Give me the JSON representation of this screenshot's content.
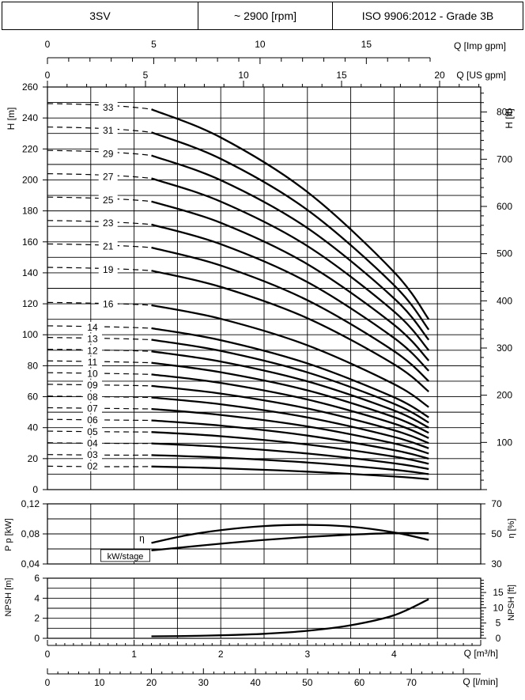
{
  "header": {
    "model": "3SV",
    "speed": "~ 2900 [rpm]",
    "standard": "ISO 9906:2012 - Grade 3B"
  },
  "axes": {
    "q_imp_gpm": {
      "label": "Q [Imp gpm]",
      "ticks": [
        "0",
        "5",
        "10",
        "15"
      ],
      "values": [
        0,
        5,
        10,
        15
      ]
    },
    "q_us_gpm": {
      "label": "Q [US gpm]",
      "ticks": [
        "0",
        "5",
        "10",
        "15",
        "20"
      ],
      "values": [
        0,
        5,
        10,
        15,
        20
      ]
    },
    "h_m": {
      "label": "H [m]",
      "ticks": [
        "0",
        "20",
        "40",
        "60",
        "80",
        "100",
        "120",
        "140",
        "160",
        "180",
        "200",
        "220",
        "240",
        "260"
      ]
    },
    "h_ft": {
      "label": "H [ft]",
      "ticks": [
        "100",
        "200",
        "300",
        "400",
        "500",
        "600",
        "700",
        "800"
      ],
      "values": [
        100,
        200,
        300,
        400,
        500,
        600,
        700,
        800
      ]
    },
    "pp_kw": {
      "label": "P p [kW]",
      "ticks": [
        "0,04",
        "0,08",
        "0,12"
      ]
    },
    "eta": {
      "label": "η [%]",
      "ticks": [
        "30",
        "50",
        "70"
      ]
    },
    "npsh_m": {
      "label": "NPSH [m]",
      "ticks": [
        "0",
        "2",
        "4",
        "6"
      ]
    },
    "npsh_ft": {
      "label": "NPSH [ft]",
      "ticks": [
        "0",
        "5",
        "10",
        "15"
      ],
      "values": [
        0,
        5,
        10,
        15
      ]
    },
    "q_m3h": {
      "label": "Q [m³/h]",
      "ticks": [
        "0",
        "1",
        "2",
        "3",
        "4"
      ]
    },
    "q_lmin": {
      "label": "Q [l/min]",
      "ticks": [
        "0",
        "10",
        "20",
        "30",
        "40",
        "50",
        "60",
        "70"
      ]
    }
  },
  "chart_data": [
    {
      "type": "line",
      "title": "",
      "xlabel": "Q [m³/h]",
      "ylabel": "H [m]",
      "xlim": [
        0,
        5
      ],
      "ylim": [
        0,
        260
      ],
      "stage_labels": [
        "33",
        "31",
        "29",
        "27",
        "25",
        "23",
        "21",
        "19",
        "16",
        "14",
        "13",
        "12",
        "11",
        "10",
        "09",
        "08",
        "07",
        "06",
        "05",
        "04",
        "03",
        "02"
      ],
      "series": [
        {
          "name": "33",
          "stages": 33,
          "x": [
            1.2,
            2,
            3,
            4,
            4.4
          ],
          "values": [
            245.6,
            227.4,
            192.2,
            140.5,
            110
          ]
        },
        {
          "name": "31",
          "stages": 31,
          "x": [
            1.2,
            2,
            3,
            4,
            4.4
          ],
          "values": [
            230.7,
            213.6,
            180.6,
            132,
            103.3
          ]
        },
        {
          "name": "29",
          "stages": 29,
          "x": [
            1.2,
            2,
            3,
            4,
            4.4
          ],
          "values": [
            215.8,
            199.8,
            168.9,
            123.5,
            96.7
          ]
        },
        {
          "name": "27",
          "stages": 27,
          "x": [
            1.2,
            2,
            3,
            4,
            4.4
          ],
          "values": [
            201,
            186,
            157.3,
            115,
            90
          ]
        },
        {
          "name": "25",
          "stages": 25,
          "x": [
            1.2,
            2,
            3,
            4,
            4.4
          ],
          "values": [
            186.1,
            172.3,
            145.6,
            106.4,
            83.3
          ]
        },
        {
          "name": "23",
          "stages": 23,
          "x": [
            1.2,
            2,
            3,
            4,
            4.4
          ],
          "values": [
            171.2,
            158.5,
            134,
            97.9,
            76.7
          ]
        },
        {
          "name": "21",
          "stages": 21,
          "x": [
            1.2,
            2,
            3,
            4,
            4.4
          ],
          "values": [
            156.3,
            144.7,
            122.3,
            89.4,
            70
          ]
        },
        {
          "name": "19",
          "stages": 19,
          "x": [
            1.2,
            2,
            3,
            4,
            4.4
          ],
          "values": [
            141.4,
            130.9,
            110.7,
            80.9,
            63.3
          ]
        },
        {
          "name": "16",
          "stages": 16,
          "x": [
            1.2,
            2,
            3,
            4,
            4.4
          ],
          "values": [
            119.1,
            110.3,
            93.2,
            68.1,
            53.3
          ]
        },
        {
          "name": "14",
          "stages": 14,
          "x": [
            1.2,
            2,
            3,
            4,
            4.4
          ],
          "values": [
            104.2,
            96.5,
            81.5,
            59.6,
            46.7
          ]
        },
        {
          "name": "13",
          "stages": 13,
          "x": [
            1.2,
            2,
            3,
            4,
            4.4
          ],
          "values": [
            96.8,
            89.6,
            75.7,
            55.4,
            43.3
          ]
        },
        {
          "name": "12",
          "stages": 12,
          "x": [
            1.2,
            2,
            3,
            4,
            4.4
          ],
          "values": [
            89.3,
            82.7,
            69.9,
            51.1,
            40
          ]
        },
        {
          "name": "11",
          "stages": 11,
          "x": [
            1.2,
            2,
            3,
            4,
            4.4
          ],
          "values": [
            81.9,
            75.8,
            64.1,
            46.8,
            36.7
          ]
        },
        {
          "name": "10",
          "stages": 10,
          "x": [
            1.2,
            2,
            3,
            4,
            4.4
          ],
          "values": [
            74.4,
            68.9,
            58.2,
            42.6,
            33.3
          ]
        },
        {
          "name": "09",
          "stages": 9,
          "x": [
            1.2,
            2,
            3,
            4,
            4.4
          ],
          "values": [
            67,
            62,
            52.4,
            38.3,
            30
          ]
        },
        {
          "name": "08",
          "stages": 8,
          "x": [
            1.2,
            2,
            3,
            4,
            4.4
          ],
          "values": [
            59.5,
            55.1,
            46.6,
            34,
            26.7
          ]
        },
        {
          "name": "07",
          "stages": 7,
          "x": [
            1.2,
            2,
            3,
            4,
            4.4
          ],
          "values": [
            52.1,
            48.2,
            40.8,
            29.8,
            23.3
          ]
        },
        {
          "name": "06",
          "stages": 6,
          "x": [
            1.2,
            2,
            3,
            4,
            4.4
          ],
          "values": [
            44.7,
            41.3,
            34.9,
            25.5,
            20
          ]
        },
        {
          "name": "05",
          "stages": 5,
          "x": [
            1.2,
            2,
            3,
            4,
            4.4
          ],
          "values": [
            37.2,
            34.5,
            29.1,
            21.3,
            16.7
          ]
        },
        {
          "name": "04",
          "stages": 4,
          "x": [
            1.2,
            2,
            3,
            4,
            4.4
          ],
          "values": [
            29.8,
            27.6,
            23.3,
            17,
            13.3
          ]
        },
        {
          "name": "03",
          "stages": 3,
          "x": [
            1.2,
            2,
            3,
            4,
            4.4
          ],
          "values": [
            22.3,
            20.7,
            17.5,
            12.8,
            10
          ]
        },
        {
          "name": "02",
          "stages": 2,
          "x": [
            1.2,
            2,
            3,
            4,
            4.4
          ],
          "values": [
            14.9,
            13.8,
            11.6,
            8.5,
            6.7
          ]
        }
      ]
    },
    {
      "type": "line",
      "title": "",
      "xlabel": "Q [m³/h]",
      "ylabel": "P p [kW]",
      "y2label": "η [%]",
      "xlim": [
        0,
        5
      ],
      "ylim": [
        0.04,
        0.12
      ],
      "y2lim": [
        30,
        70
      ],
      "series": [
        {
          "name": "η",
          "axis": "right",
          "x": [
            1.2,
            1.6,
            2,
            2.5,
            3,
            3.5,
            4,
            4.4
          ],
          "values": [
            44,
            49,
            52.5,
            55.2,
            56,
            54.8,
            51,
            46
          ]
        },
        {
          "name": "kW/stage",
          "axis": "left",
          "x": [
            1.2,
            2,
            2.5,
            3,
            3.5,
            4,
            4.4
          ],
          "values": [
            0.058,
            0.067,
            0.072,
            0.076,
            0.079,
            0.081,
            0.081
          ]
        }
      ]
    },
    {
      "type": "line",
      "title": "",
      "xlabel": "Q [m³/h]",
      "ylabel": "NPSH [m]",
      "xlim": [
        0,
        5
      ],
      "ylim": [
        0,
        6
      ],
      "series": [
        {
          "name": "NPSH",
          "x": [
            1.2,
            1.5,
            2,
            2.5,
            3,
            3.5,
            4,
            4.4
          ],
          "values": [
            0.2,
            0.22,
            0.3,
            0.45,
            0.75,
            1.3,
            2.3,
            3.9
          ]
        }
      ]
    }
  ]
}
